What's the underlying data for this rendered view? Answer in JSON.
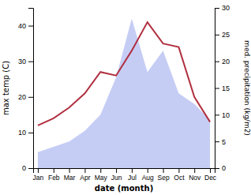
{
  "chart_data": {
    "type": "line",
    "categories": [
      "Jan",
      "Feb",
      "Mar",
      "Apr",
      "May",
      "Jun",
      "Jul",
      "Aug",
      "Sep",
      "Oct",
      "Nov",
      "Dec"
    ],
    "xlabel": "date (month)",
    "ylabel": "max temp (C)",
    "y2label": "med. precipitation (kg/m2)",
    "series": [
      {
        "type": "area",
        "axis": "y2",
        "color": "#c5cdf5",
        "values": [
          3,
          4,
          5,
          7,
          10,
          17,
          28,
          18,
          22,
          14,
          12,
          9
        ]
      },
      {
        "type": "line",
        "color": "#b03040",
        "values": [
          12,
          14,
          17,
          21,
          27,
          26,
          33,
          41,
          35,
          34,
          20,
          13
        ]
      }
    ],
    "ylim": [
      0,
      45
    ],
    "yticks": [
      0,
      10,
      20,
      30,
      40
    ],
    "y2lim": [
      0,
      30
    ],
    "y2ticks": [
      0,
      5,
      10,
      15,
      20,
      25,
      30
    ]
  }
}
